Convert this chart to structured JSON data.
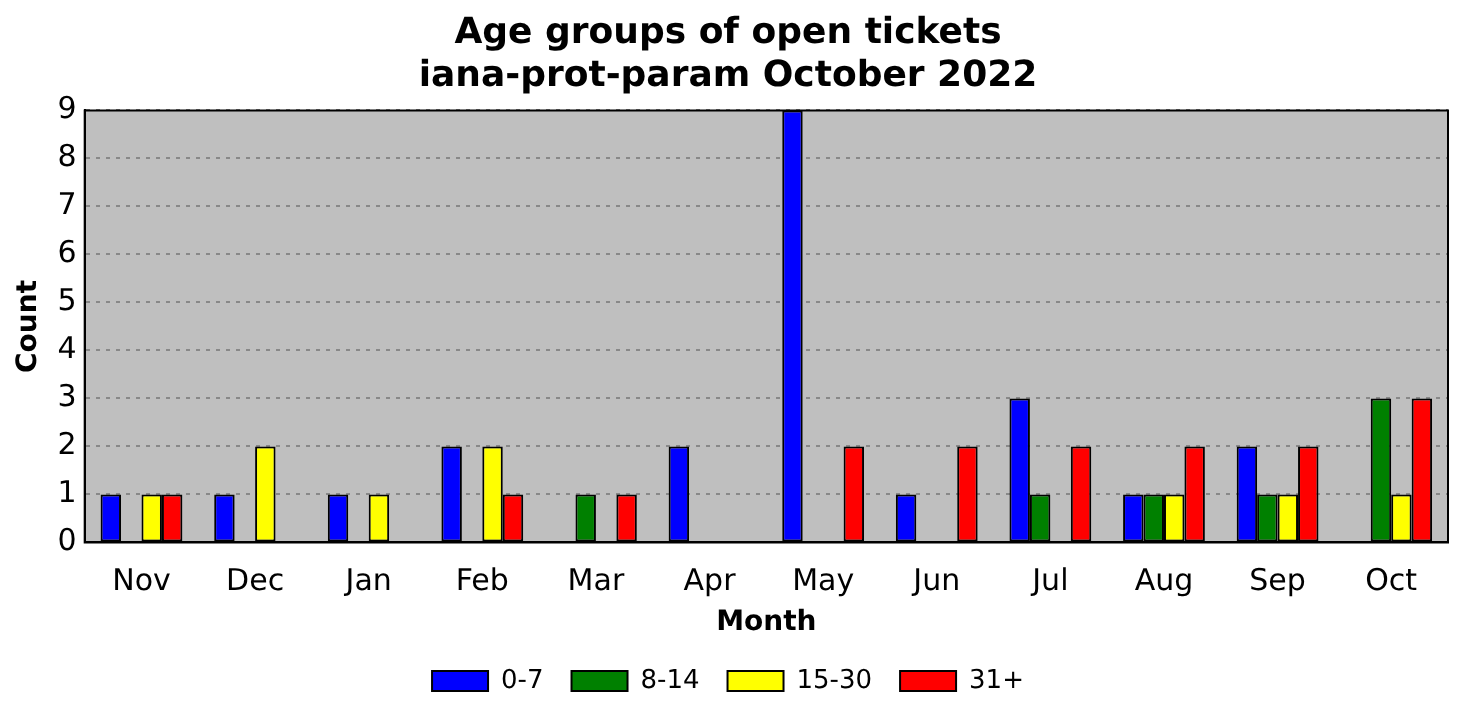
{
  "chart_data": {
    "type": "bar",
    "title": "Age groups of open tickets\niana-prot-param October 2022",
    "xlabel": "Month",
    "ylabel": "Count",
    "categories": [
      "Nov",
      "Dec",
      "Jan",
      "Feb",
      "Mar",
      "Apr",
      "May",
      "Jun",
      "Jul",
      "Aug",
      "Sep",
      "Oct"
    ],
    "series": [
      {
        "name": "0-7",
        "color": "#0000ff",
        "values": [
          1,
          1,
          1,
          2,
          0,
          2,
          9,
          1,
          3,
          1,
          2,
          0
        ]
      },
      {
        "name": "8-14",
        "color": "#008000",
        "values": [
          0,
          0,
          0,
          0,
          1,
          0,
          0,
          0,
          1,
          1,
          1,
          3
        ]
      },
      {
        "name": "15-30",
        "color": "#ffff00",
        "values": [
          1,
          2,
          1,
          2,
          0,
          0,
          0,
          0,
          0,
          1,
          1,
          1
        ]
      },
      {
        "name": "31+",
        "color": "#ff0000",
        "values": [
          1,
          0,
          0,
          1,
          1,
          0,
          2,
          2,
          2,
          2,
          2,
          3
        ]
      }
    ],
    "ylim": [
      0,
      9
    ],
    "yticks": [
      0,
      1,
      2,
      3,
      4,
      5,
      6,
      7,
      8,
      9
    ],
    "grid": "y",
    "legend": "bottom"
  }
}
